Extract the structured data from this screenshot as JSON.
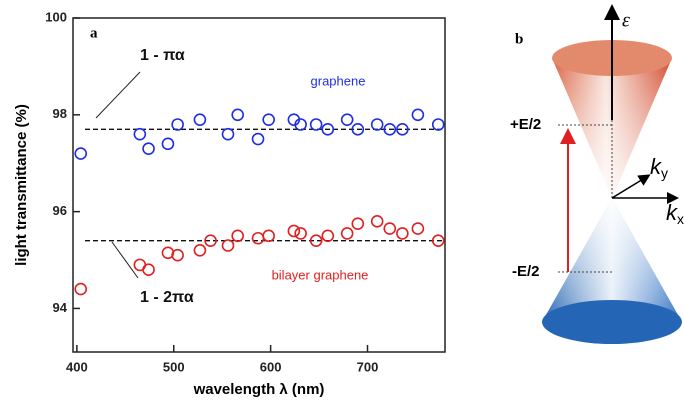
{
  "chart_data": {
    "type": "scatter",
    "panel_label": "a",
    "xlabel": "wavelength λ (nm)",
    "ylabel": "light transmittance (%)",
    "xlim": [
      396,
      780
    ],
    "ylim": [
      93.1,
      100
    ],
    "xticks": [
      400,
      500,
      600,
      700
    ],
    "yticks": [
      94,
      96,
      98,
      100
    ],
    "series": [
      {
        "name": "graphene",
        "color": "#1f2fe0",
        "x": [
          404,
          465,
          474,
          494,
          504,
          527,
          556,
          566,
          587,
          598,
          624,
          631,
          647,
          659,
          679,
          690,
          710,
          723,
          736,
          752,
          773
        ],
        "values": [
          97.2,
          97.6,
          97.3,
          97.4,
          97.8,
          97.9,
          97.6,
          98.0,
          97.5,
          97.9,
          97.9,
          97.8,
          97.8,
          97.7,
          97.9,
          97.7,
          97.8,
          97.7,
          97.7,
          98.0,
          97.8
        ]
      },
      {
        "name": "bilayer graphene",
        "color": "#e02020",
        "x": [
          404,
          465,
          474,
          494,
          504,
          527,
          538,
          556,
          566,
          587,
          598,
          624,
          631,
          647,
          659,
          679,
          690,
          710,
          723,
          736,
          752,
          773
        ],
        "values": [
          94.4,
          94.9,
          94.8,
          95.15,
          95.1,
          95.2,
          95.4,
          95.3,
          95.5,
          95.45,
          95.5,
          95.6,
          95.55,
          95.4,
          95.5,
          95.55,
          95.75,
          95.8,
          95.65,
          95.55,
          95.65,
          95.4
        ]
      }
    ],
    "hlines": [
      {
        "value": 97.7,
        "label": "1 - πα"
      },
      {
        "value": 95.4,
        "label": "1 - 2πα"
      }
    ]
  },
  "cone_diagram": {
    "panel_label": "b",
    "energy_axis": "ε",
    "upper_level": "+E/2",
    "lower_level": "-E/2",
    "ky": {
      "base": "k",
      "sub": "y"
    },
    "kx": {
      "base": "k",
      "sub": "x"
    }
  }
}
